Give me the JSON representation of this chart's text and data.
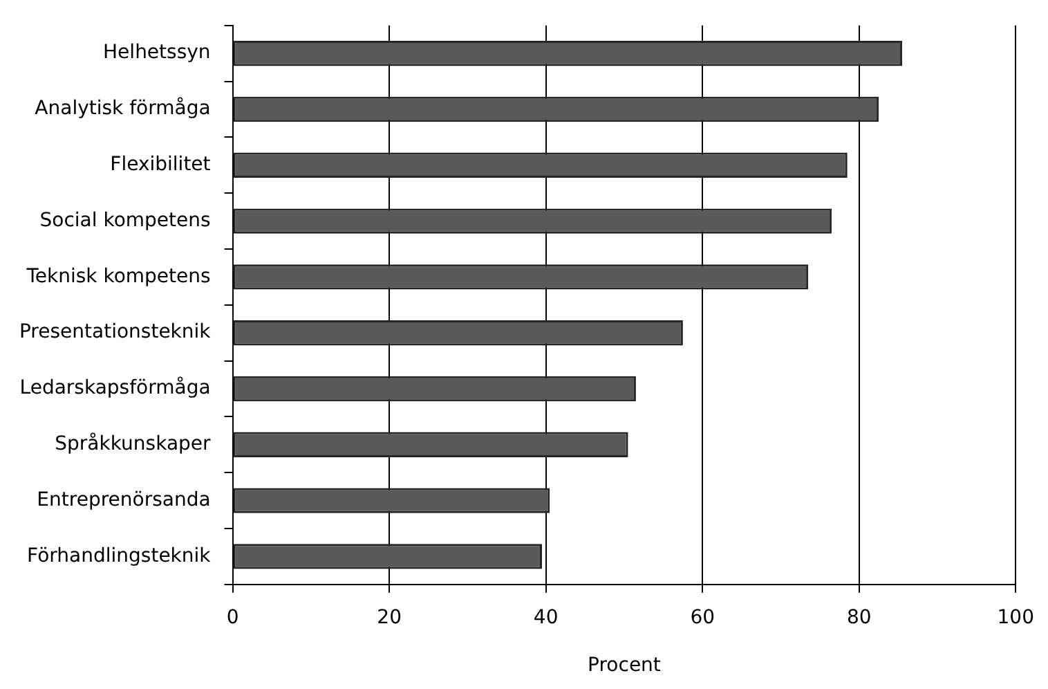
{
  "chart_data": {
    "type": "bar",
    "orientation": "horizontal",
    "xlabel": "Procent",
    "categories": [
      "Helhetssyn",
      "Analytisk förmåga",
      "Flexibilitet",
      "Social kompetens",
      "Teknisk kompetens",
      "Presentationsteknik",
      "Ledarskapsförmåga",
      "Språkkunskaper",
      "Entreprenörsanda",
      "Förhandlingsteknik"
    ],
    "values": [
      85.5,
      82.5,
      78.5,
      76.5,
      73.5,
      57.5,
      51.5,
      50.5,
      40.5,
      39.5
    ],
    "color": "#595959",
    "xlim": [
      0,
      100
    ],
    "xticks": [
      0,
      20,
      40,
      60,
      80,
      100
    ],
    "grid": "x",
    "legend": false
  }
}
